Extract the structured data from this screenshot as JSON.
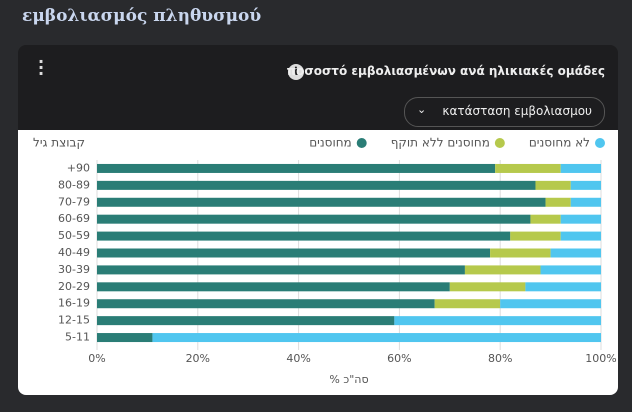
{
  "header": {
    "title": "εμβολιασμός πληθυσμού"
  },
  "card": {
    "title": "ποσοστό εμβολιασμένων ανά ηλικιακές ομάδες",
    "dropdown": "κατάσταση εμβολιασμου"
  },
  "chart_data": {
    "type": "bar",
    "orientation": "horizontal",
    "stacked": true,
    "ylabel": "קבוצת גיל",
    "xlabel": "% סה\"כ",
    "categories": [
      "+90",
      "80-89",
      "70-79",
      "60-69",
      "50-59",
      "40-49",
      "30-39",
      "20-29",
      "16-19",
      "12-15",
      "5-11"
    ],
    "series": [
      {
        "name": "מחוסנים",
        "color": "#2a7d76",
        "values": [
          79,
          87,
          89,
          86,
          82,
          78,
          73,
          70,
          67,
          59,
          11
        ]
      },
      {
        "name": "מחוסנים ללא תוקף",
        "color": "#b6c94c",
        "values": [
          13,
          7,
          5,
          6,
          10,
          12,
          15,
          15,
          13,
          0,
          0
        ]
      },
      {
        "name": "לא מחוסנים",
        "color": "#50c6ef",
        "values": [
          8,
          6,
          6,
          8,
          8,
          10,
          12,
          15,
          20,
          41,
          89
        ]
      }
    ],
    "xlim": [
      0,
      100
    ],
    "xticks": [
      {
        "value": 0,
        "label": "0%"
      },
      {
        "value": 20,
        "label": "20%"
      },
      {
        "value": 40,
        "label": "40%"
      },
      {
        "value": 60,
        "label": "60%"
      },
      {
        "value": 80,
        "label": "80%"
      },
      {
        "value": 100,
        "label": "100%"
      }
    ],
    "grid": true,
    "legend": "top-right"
  }
}
